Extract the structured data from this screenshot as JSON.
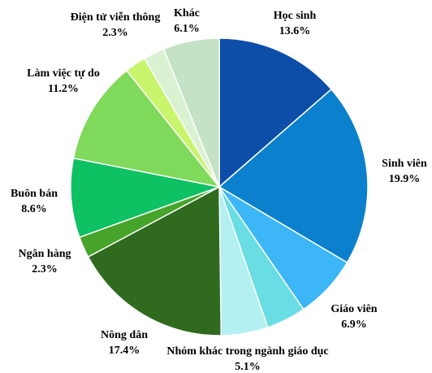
{
  "chart_data": {
    "type": "pie",
    "categories": [
      "Học sinh",
      "Sinh viên",
      "Giáo viên",
      null,
      "Nhóm khác trong ngành giáo dục",
      "Nông dân",
      "Ngân hàng",
      "Buôn bán",
      "Làm việc tự do",
      "Điện tử viễn thông",
      null,
      "Khác"
    ],
    "values": [
      13.6,
      19.9,
      6.9,
      4.3,
      5.1,
      17.4,
      2.3,
      8.6,
      11.2,
      2.3,
      2.3,
      6.1
    ],
    "value_labels": [
      "13.6%",
      "19.9%",
      "6.9%",
      null,
      "5.1%",
      "17.4%",
      "2.3%",
      "8.6%",
      "11.2%",
      "2.3%",
      null,
      "6.1%"
    ],
    "colors": [
      "#0c4ea8",
      "#0b80cc",
      "#3cb6f6",
      "#68dde3",
      "#b2f0f2",
      "#2f6a1e",
      "#47a42a",
      "#0ec163",
      "#7fd95b",
      "#c8f56c",
      "#daf2d2",
      "#c4e2c6"
    ]
  }
}
